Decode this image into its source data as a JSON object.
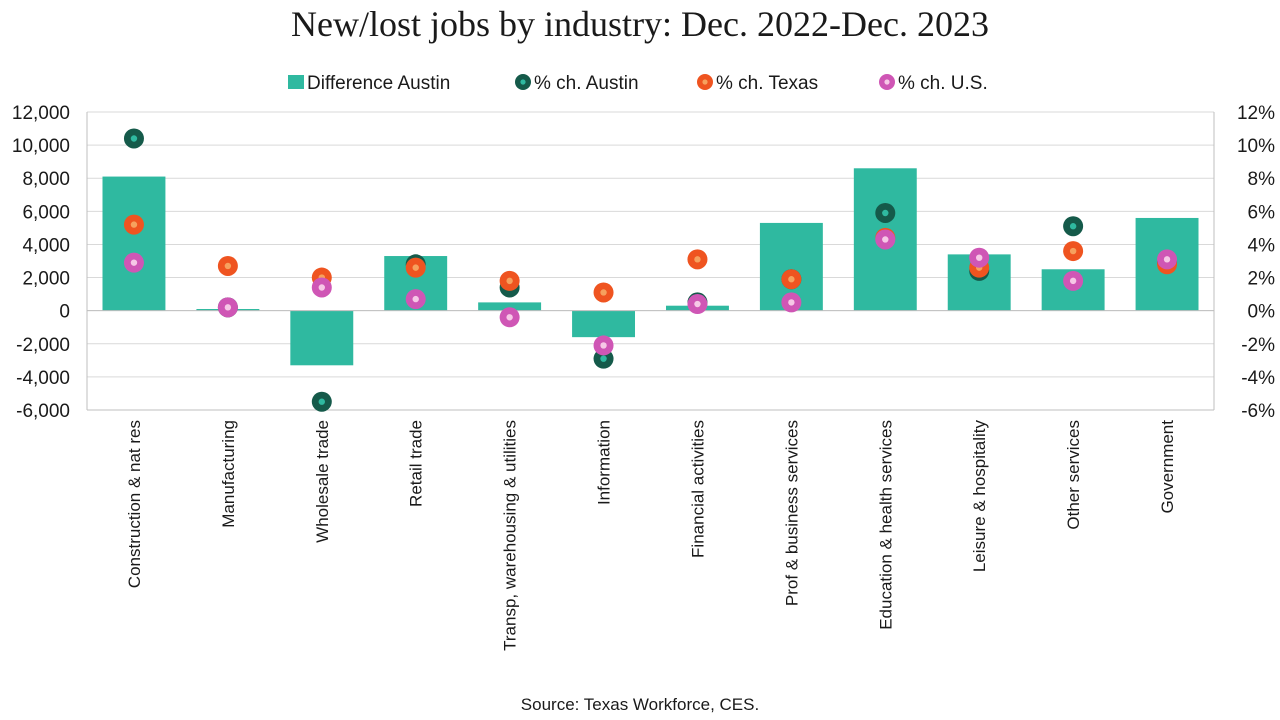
{
  "chart_data": {
    "type": "bar",
    "title": "New/lost jobs by industry: Dec. 2022-Dec. 2023",
    "source": "Source: Texas Workforce, CES.",
    "categories": [
      "Construction & nat res",
      "Manufacturing",
      "Wholesale trade",
      "Retail trade",
      "Transp, warehousing & utilities",
      "Information",
      "Financial activities",
      "Prof & business services",
      "Education & health services",
      "Leisure & hospitality",
      "Other services",
      "Government"
    ],
    "bar_series": {
      "name": "Difference Austin",
      "color": "#2fb9a0",
      "axis": "left",
      "values": [
        8100,
        100,
        -3300,
        3300,
        500,
        -1600,
        300,
        5300,
        8600,
        3400,
        2500,
        5600
      ]
    },
    "point_series": [
      {
        "name": "% ch. Austin",
        "color": "#155a4a",
        "inner": "#2fb9a0",
        "axis": "right",
        "values": [
          10.4,
          0.2,
          -5.5,
          2.8,
          1.4,
          -2.9,
          0.5,
          1.9,
          5.9,
          2.4,
          5.1,
          2.9
        ]
      },
      {
        "name": "% ch. Texas",
        "color": "#ef5420",
        "inner": "#f6a15e",
        "axis": "right",
        "values": [
          5.2,
          2.7,
          2.0,
          2.6,
          1.8,
          1.1,
          3.1,
          1.9,
          4.4,
          2.6,
          3.6,
          2.8
        ]
      },
      {
        "name": "% ch. U.S.",
        "color": "#cf56b5",
        "inner": "#f6c8e6",
        "axis": "right",
        "values": [
          2.9,
          0.2,
          1.4,
          0.7,
          -0.4,
          -2.1,
          0.4,
          0.5,
          4.3,
          3.2,
          1.8,
          3.1
        ]
      }
    ],
    "y_left": {
      "ylim": [
        -6000,
        12000
      ],
      "ticks": [
        "12,000",
        "10,000",
        "8,000",
        "6,000",
        "4,000",
        "2,000",
        "0",
        "-2,000",
        "-4,000",
        "-6,000"
      ],
      "tick_values": [
        12000,
        10000,
        8000,
        6000,
        4000,
        2000,
        0,
        -2000,
        -4000,
        -6000
      ]
    },
    "y_right": {
      "ylim": [
        -6,
        12
      ],
      "ticks": [
        "12%",
        "10%",
        "8%",
        "6%",
        "4%",
        "2%",
        "0%",
        "-2%",
        "-4%",
        "-6%"
      ],
      "tick_values": [
        12,
        10,
        8,
        6,
        4,
        2,
        0,
        -2,
        -4,
        -6
      ]
    },
    "legend": [
      "Difference Austin",
      "% ch. Austin",
      "% ch. Texas",
      "% ch. U.S."
    ],
    "legend_position": "top-center",
    "grid": true
  }
}
